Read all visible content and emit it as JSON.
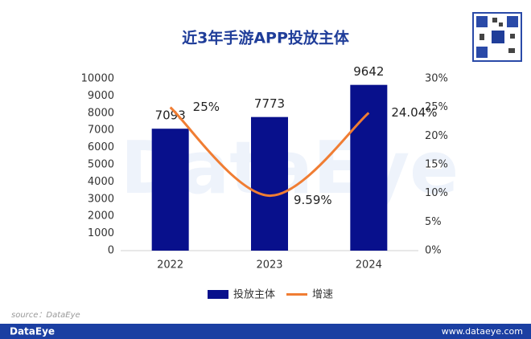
{
  "chart_data": {
    "type": "bar-line",
    "title": "近3年手游APP投放主体",
    "watermark": "DataEye",
    "categories": [
      "2022",
      "2023",
      "2024"
    ],
    "series": [
      {
        "name": "投放主体",
        "type": "bar",
        "color": "#08108c",
        "values": [
          7093,
          7773,
          9642
        ]
      },
      {
        "name": "增速",
        "type": "line",
        "axis": "y2",
        "color": "#f07d33",
        "values": [
          25,
          9.59,
          24.04
        ],
        "value_labels": [
          "25%",
          "9.59%",
          "24.04%"
        ]
      }
    ],
    "ylim": [
      0,
      10000
    ],
    "yticks": [
      0,
      1000,
      2000,
      3000,
      4000,
      5000,
      6000,
      7000,
      8000,
      9000,
      10000
    ],
    "y2lim": [
      0,
      30
    ],
    "y2ticks": [
      {
        "value": 0,
        "label": "0%"
      },
      {
        "value": 5,
        "label": "5%"
      },
      {
        "value": 10,
        "label": "10%"
      },
      {
        "value": 15,
        "label": "15%"
      },
      {
        "value": 20,
        "label": "20%"
      },
      {
        "value": 25,
        "label": "25%"
      },
      {
        "value": 30,
        "label": "30%"
      }
    ],
    "legend": "bottom",
    "grid": false
  },
  "source": "source：DataEye",
  "footer": {
    "brand": "DataEye",
    "url": "www.dataeye.com"
  }
}
